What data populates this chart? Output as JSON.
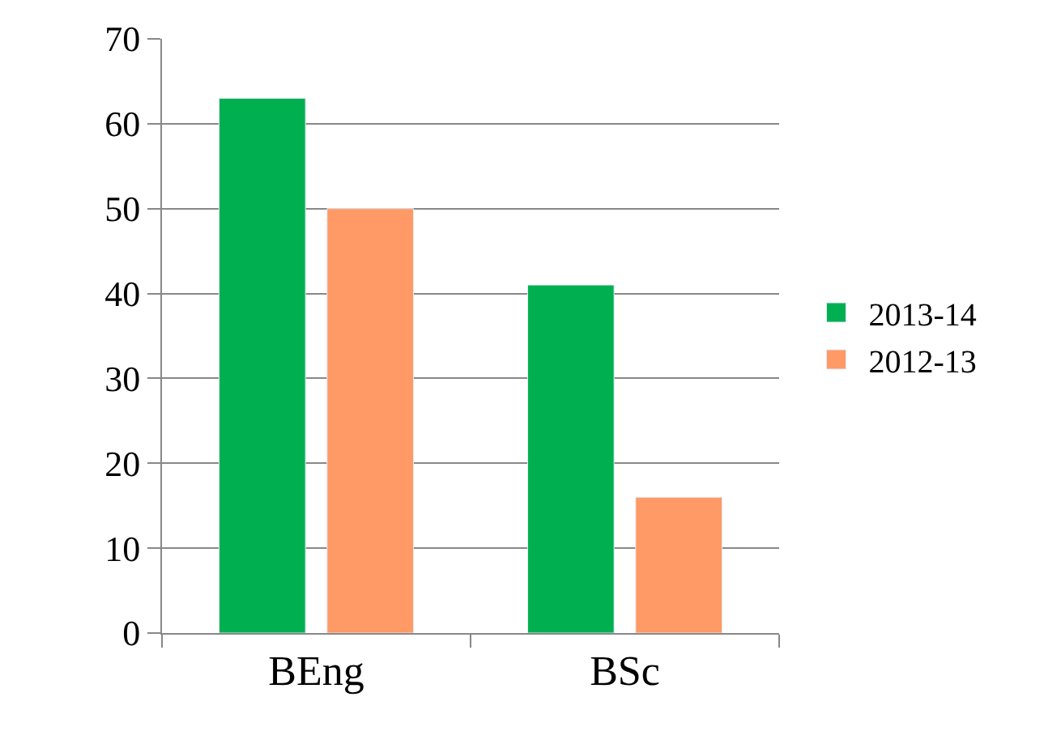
{
  "chart_data": {
    "type": "bar",
    "categories": [
      "BEng",
      "BSc"
    ],
    "series": [
      {
        "name": "2013-14",
        "color": "#00b050",
        "values": [
          63,
          41
        ]
      },
      {
        "name": "2012-13",
        "color": "#ff9966",
        "values": [
          50,
          16
        ]
      }
    ],
    "ylim": [
      0,
      70
    ],
    "yticks": [
      0,
      10,
      20,
      30,
      40,
      50,
      60,
      70
    ],
    "grid": "y",
    "legend": "right"
  }
}
